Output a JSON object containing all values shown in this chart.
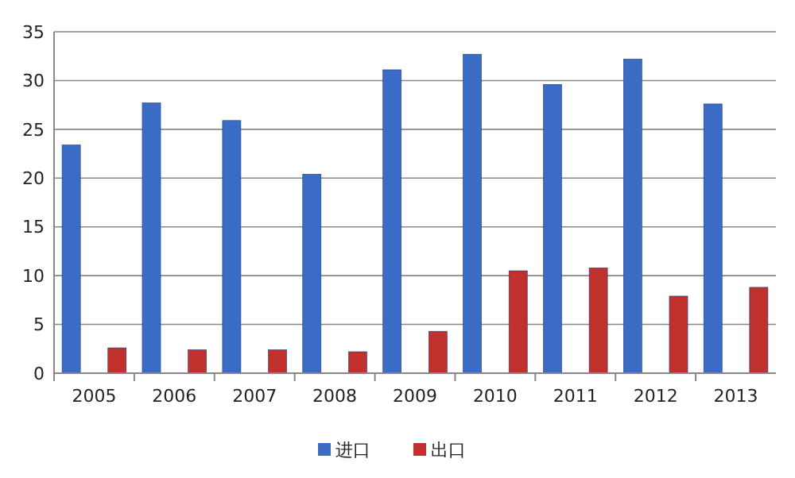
{
  "chart_data": {
    "type": "bar",
    "categories": [
      "2005",
      "2006",
      "2007",
      "2008",
      "2009",
      "2010",
      "2011",
      "2012",
      "2013"
    ],
    "series": [
      {
        "name": "进口",
        "color": "#3a6cc6",
        "values": [
          23.4,
          27.7,
          25.9,
          20.4,
          31.1,
          32.7,
          29.6,
          32.2,
          27.6
        ]
      },
      {
        "name": "出口",
        "color": "#c0302c",
        "values": [
          2.6,
          2.4,
          2.4,
          2.2,
          4.3,
          10.5,
          10.8,
          7.9,
          8.8
        ]
      }
    ],
    "ylim": [
      0,
      35
    ],
    "yticks": [
      0,
      5,
      10,
      15,
      20,
      25,
      30,
      35
    ],
    "grid": "y",
    "legend": "bottom"
  }
}
